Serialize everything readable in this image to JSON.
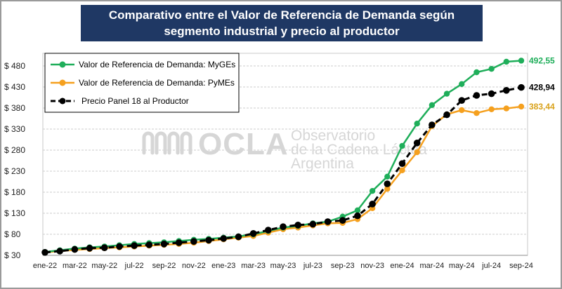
{
  "title": "Comparativo entre el Valor de Referencia de Demanda según segmento industrial y precio al productor",
  "watermark": {
    "brand": "OCLA",
    "line1": "Observatorio",
    "line2": "de la Cadena Láctea",
    "line3": "Argentina"
  },
  "colors": {
    "myges": "#1fae5a",
    "pymes": "#f5a01e",
    "panel": "#000000",
    "pymes_label": "#d9a21b"
  },
  "chart_data": {
    "type": "line",
    "ylim": [
      30,
      510
    ],
    "yticks": [
      30,
      80,
      130,
      180,
      230,
      280,
      330,
      380,
      430,
      480
    ],
    "ytick_labels": [
      "$ 30",
      "$ 80",
      "$ 130",
      "$ 180",
      "$ 230",
      "$ 280",
      "$ 330",
      "$ 380",
      "$ 430",
      "$ 480"
    ],
    "x_tick_labels": [
      "ene-22",
      "mar-22",
      "may-22",
      "jul-22",
      "sep-22",
      "nov-22",
      "ene-23",
      "mar-23",
      "may-23",
      "jul-23",
      "sep-23",
      "nov-23",
      "ene-24",
      "mar-24",
      "may-24",
      "jul-24",
      "sep-24"
    ],
    "x": [
      "ene-22",
      "feb-22",
      "mar-22",
      "abr-22",
      "may-22",
      "jun-22",
      "jul-22",
      "ago-22",
      "sep-22",
      "oct-22",
      "nov-22",
      "dic-22",
      "ene-23",
      "feb-23",
      "mar-23",
      "abr-23",
      "may-23",
      "jun-23",
      "jul-23",
      "ago-23",
      "sep-23",
      "oct-23",
      "nov-23",
      "dic-23",
      "ene-24",
      "feb-24",
      "mar-24",
      "abr-24",
      "may-24",
      "jun-24",
      "jul-24",
      "ago-24",
      "sep-24"
    ],
    "grid": true,
    "legend_position": "top-left",
    "series": [
      {
        "key": "myges",
        "name": "Valor de Referencia de Demanda: MyGEs",
        "end_label": "492,55",
        "values": [
          38,
          42,
          46,
          49,
          51,
          54,
          57,
          59,
          61,
          64,
          67,
          69,
          72,
          75,
          80,
          88,
          96,
          100,
          106,
          110,
          122,
          137,
          183,
          217,
          290,
          343,
          387,
          414,
          437,
          465,
          473,
          490,
          492.55
        ]
      },
      {
        "key": "pymes",
        "name": "Valor de Referencia de Demanda: PyMEs",
        "end_label": "383,44",
        "values": [
          37,
          40,
          43,
          45,
          47,
          49,
          51,
          53,
          55,
          57,
          60,
          64,
          68,
          72,
          76,
          84,
          92,
          96,
          101,
          106,
          107,
          116,
          142,
          188,
          232,
          275,
          337,
          365,
          375,
          368,
          377,
          379,
          383.44
        ]
      },
      {
        "key": "panel",
        "name": "Precio Panel 18 al Productor",
        "end_label": "428,94",
        "values": [
          37,
          40,
          44,
          47,
          48,
          51,
          53,
          55,
          57,
          60,
          63,
          66,
          70,
          74,
          82,
          90,
          98,
          102,
          104,
          110,
          113,
          124,
          152,
          200,
          248,
          297,
          340,
          364,
          398,
          410,
          414,
          422,
          428.94
        ]
      }
    ]
  }
}
